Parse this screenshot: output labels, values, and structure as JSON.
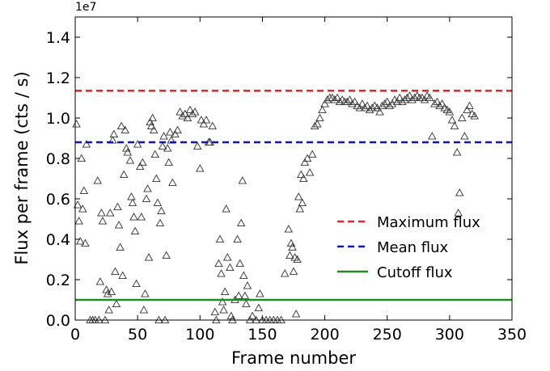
{
  "chart_data": {
    "type": "scatter",
    "xlabel": "Frame number",
    "ylabel": "Flux per frame (cts / s)",
    "offset_text": "1e7",
    "xlim": [
      0,
      350
    ],
    "xticks": [
      0,
      50,
      100,
      150,
      200,
      250,
      300,
      350
    ],
    "ylim": [
      0,
      1.5
    ],
    "yticks": [
      {
        "value": 0,
        "label": "0.0"
      },
      0.2,
      0.4,
      0.6,
      0.8,
      {
        "value": 1,
        "label": "1.0"
      },
      1.2,
      1.4
    ],
    "points": {
      "color": "#333333",
      "marker": "triangle",
      "x": [
        1,
        2,
        3,
        4,
        5,
        6,
        7,
        8,
        9,
        12,
        14,
        16,
        18,
        19,
        20,
        21,
        22,
        24,
        25,
        26,
        27,
        28,
        29,
        30,
        31,
        32,
        33,
        34,
        35,
        36,
        37,
        38,
        39,
        40,
        41,
        42,
        44,
        45,
        46,
        47,
        48,
        49,
        50,
        52,
        53,
        54,
        55,
        56,
        57,
        58,
        59,
        60,
        61,
        62,
        63,
        64,
        65,
        66,
        67,
        68,
        69,
        70,
        71,
        72,
        73,
        74,
        75,
        76,
        77,
        78,
        80,
        82,
        84,
        86,
        88,
        90,
        92,
        94,
        96,
        98,
        100,
        101,
        103,
        105,
        107,
        108,
        110,
        112,
        113,
        115,
        116,
        117,
        118,
        119,
        120,
        121,
        122,
        124,
        125,
        126,
        128,
        130,
        131,
        132,
        133,
        134,
        135,
        136,
        137,
        138,
        140,
        142,
        145,
        147,
        148,
        150,
        153,
        156,
        159,
        162,
        165,
        168,
        171,
        172,
        173,
        174,
        175,
        176,
        177,
        178,
        179,
        180,
        181,
        182,
        183,
        184,
        186,
        188,
        190,
        192,
        194,
        196,
        198,
        200,
        202,
        204,
        206,
        208,
        210,
        212,
        214,
        216,
        218,
        220,
        222,
        224,
        226,
        228,
        230,
        232,
        234,
        236,
        238,
        240,
        242,
        244,
        246,
        248,
        250,
        252,
        254,
        256,
        258,
        260,
        262,
        264,
        266,
        268,
        270,
        272,
        274,
        276,
        278,
        280,
        282,
        284,
        286,
        288,
        290,
        292,
        294,
        296,
        298,
        300,
        302,
        304,
        306,
        307,
        308,
        310,
        312,
        314,
        316,
        318,
        320
      ],
      "y": [
        0.97,
        0.57,
        0.49,
        0.39,
        0.8,
        0.55,
        0.64,
        0.38,
        0.87,
        0,
        0,
        0,
        0.69,
        0,
        0.19,
        0.53,
        0.49,
        0,
        0.15,
        0.13,
        0.05,
        0.53,
        0.14,
        0.89,
        0.92,
        0.24,
        0.08,
        0.56,
        0.47,
        0.36,
        0.96,
        0.22,
        0.72,
        0.94,
        0.85,
        0.83,
        0.79,
        0.61,
        0.58,
        0.51,
        0.44,
        0.18,
        0.87,
        0.76,
        0.51,
        0.78,
        0.05,
        0.13,
        0.6,
        0.65,
        0.31,
        0.98,
        0.96,
        1.0,
        0.94,
        0.82,
        0.7,
        0.58,
        0,
        0.48,
        0.54,
        0.86,
        0.91,
        0,
        0.32,
        0.85,
        0.78,
        0.93,
        0.89,
        0.68,
        0.92,
        0.94,
        1.03,
        1.01,
        1.02,
        1.0,
        1.04,
        1.02,
        1.03,
        0.86,
        0.75,
        0.99,
        0.97,
        0.99,
        0.88,
        0.88,
        0.96,
        0.04,
        0,
        0.28,
        0.4,
        0.23,
        0.09,
        0.05,
        0.14,
        0.55,
        0.31,
        0.26,
        0.02,
        0,
        0.1,
        0.4,
        0.12,
        0.28,
        0.48,
        0.69,
        0.22,
        0.12,
        0.08,
        0.17,
        0,
        0.02,
        0,
        0.06,
        0.13,
        0,
        0,
        0,
        0,
        0,
        0,
        0.23,
        0.45,
        0.32,
        0.38,
        0.36,
        0.24,
        0.31,
        0.03,
        0.3,
        0.61,
        0.55,
        0.72,
        0.58,
        0.7,
        0.78,
        0.8,
        0.73,
        0.82,
        0.96,
        0.97,
        1.0,
        1.04,
        1.07,
        1.09,
        1.1,
        1.1,
        1.09,
        1.1,
        1.08,
        1.09,
        1.08,
        1.08,
        1.09,
        1.07,
        1.08,
        1.06,
        1.05,
        1.07,
        1.05,
        1.06,
        1.04,
        1.05,
        1.06,
        1.05,
        1.03,
        1.06,
        1.07,
        1.08,
        1.06,
        1.07,
        1.09,
        1.08,
        1.1,
        1.08,
        1.09,
        1.1,
        1.11,
        1.09,
        1.1,
        1.11,
        1.1,
        1.1,
        1.09,
        1.11,
        1.1,
        0.91,
        1.07,
        1.08,
        1.06,
        1.07,
        1.05,
        1.04,
        1.03,
        0.99,
        0.96,
        0.83,
        0.53,
        0.63,
        1.0,
        0.91,
        1.04,
        1.06,
        1.02,
        1.01
      ]
    },
    "lines": [
      {
        "name": "Maximum flux",
        "value": 1.135,
        "color": "#ee2222",
        "style": "dashed"
      },
      {
        "name": "Mean flux",
        "value": 0.88,
        "color": "#1111cc",
        "style": "dashed"
      },
      {
        "name": "Cutoff flux",
        "value": 0.1,
        "color": "#228b22",
        "style": "solid"
      }
    ]
  }
}
